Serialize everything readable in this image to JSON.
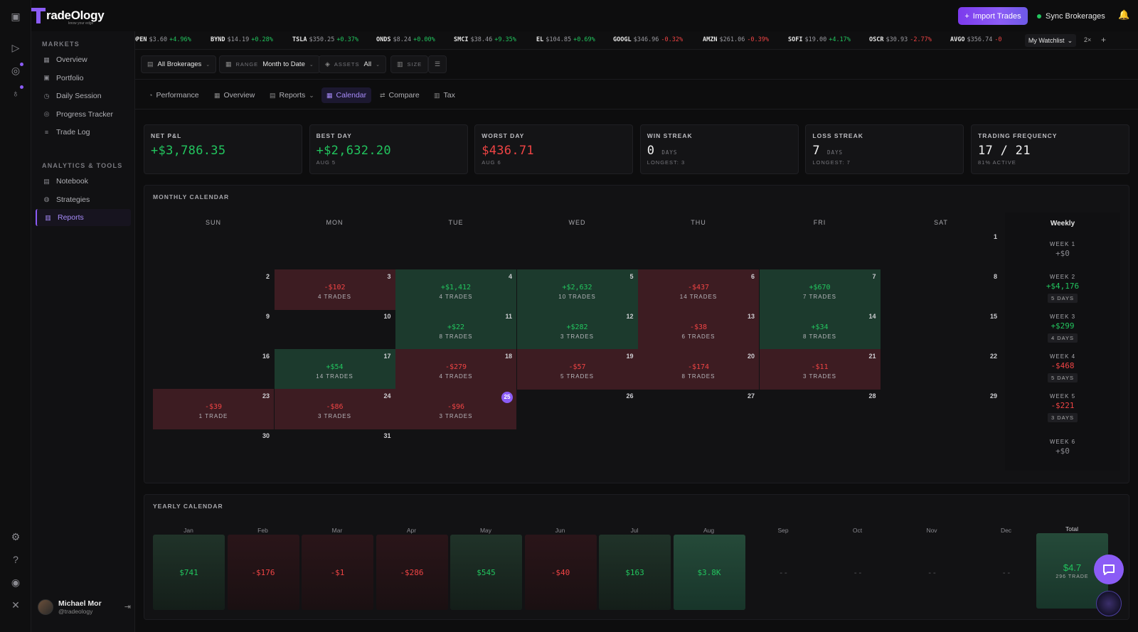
{
  "brand": {
    "name": "radeOlogy",
    "tagline": "know your edge"
  },
  "header": {
    "import_label": "Import Trades",
    "sync_label": "Sync Brokerages"
  },
  "sidebar": {
    "section1": "MARKETS",
    "section2": "ANALYTICS & TOOLS",
    "items1": [
      {
        "label": "Overview",
        "icon": "grid-icon"
      },
      {
        "label": "Portfolio",
        "icon": "wallet-icon"
      },
      {
        "label": "Daily Session",
        "icon": "clock-icon"
      },
      {
        "label": "Progress Tracker",
        "icon": "target-icon"
      },
      {
        "label": "Trade Log",
        "icon": "list-icon"
      }
    ],
    "items2": [
      {
        "label": "Notebook",
        "icon": "book-icon"
      },
      {
        "label": "Strategies",
        "icon": "strategy-icon"
      },
      {
        "label": "Reports",
        "icon": "chart-icon",
        "active": true
      }
    ],
    "user": {
      "name": "Michael Mor",
      "handle": "@tradeology"
    }
  },
  "ticker": [
    {
      "sym": "OPEN",
      "price": "$3.60",
      "chg": "+4.96%",
      "dir": "up"
    },
    {
      "sym": "BYND",
      "price": "$14.19",
      "chg": "+0.28%",
      "dir": "up"
    },
    {
      "sym": "TSLA",
      "price": "$350.25",
      "chg": "+0.37%",
      "dir": "up"
    },
    {
      "sym": "ONDS",
      "price": "$8.24",
      "chg": "+0.00%",
      "dir": "up"
    },
    {
      "sym": "SMCI",
      "price": "$38.46",
      "chg": "+9.35%",
      "dir": "up"
    },
    {
      "sym": "EL",
      "price": "$104.85",
      "chg": "+0.69%",
      "dir": "up"
    },
    {
      "sym": "GOOGL",
      "price": "$346.96",
      "chg": "-0.32%",
      "dir": "dn"
    },
    {
      "sym": "AMZN",
      "price": "$261.06",
      "chg": "-0.39%",
      "dir": "dn"
    },
    {
      "sym": "SOFI",
      "price": "$19.00",
      "chg": "+4.17%",
      "dir": "up"
    },
    {
      "sym": "OSCR",
      "price": "$30.93",
      "chg": "-2.77%",
      "dir": "dn"
    },
    {
      "sym": "AVGO",
      "price": "$356.74",
      "chg": "-0",
      "dir": "dn"
    }
  ],
  "watchlist": {
    "label": "My Watchlist",
    "speed": "2×",
    "add": "+"
  },
  "filters": {
    "brokerage": "All Brokerages",
    "range_label": "RANGE",
    "range": "Month to Date",
    "assets_label": "ASSETS",
    "assets": "All",
    "size_label": "SIZE"
  },
  "tabs": [
    {
      "label": "Performance",
      "icon": "performance-icon"
    },
    {
      "label": "Overview",
      "icon": "overview-icon"
    },
    {
      "label": "Reports",
      "icon": "reports-icon",
      "dropdown": true
    },
    {
      "label": "Calendar",
      "icon": "calendar-icon",
      "active": true
    },
    {
      "label": "Compare",
      "icon": "compare-icon"
    },
    {
      "label": "Tax",
      "icon": "tax-icon"
    }
  ],
  "stats": [
    {
      "title": "NET P&L",
      "value": "+$3,786.35",
      "sub": "",
      "tone": "up"
    },
    {
      "title": "BEST DAY",
      "value": "+$2,632.20",
      "sub": "AUG 5",
      "tone": "up"
    },
    {
      "title": "WORST DAY",
      "value": "$436.71",
      "sub": "AUG 6",
      "tone": "dn"
    },
    {
      "title": "WIN STREAK",
      "value": "0",
      "unit": "DAYS",
      "sub": "LONGEST: 3",
      "tone": "white"
    },
    {
      "title": "LOSS STREAK",
      "value": "7",
      "unit": "DAYS",
      "sub": "LONGEST: 7",
      "tone": "white"
    },
    {
      "title": "TRADING FREQUENCY",
      "value": "17 / 21",
      "sub": "81% ACTIVE",
      "tone": "white"
    }
  ],
  "monthly": {
    "title": "MONTHLY CALENDAR",
    "days": [
      "SUN",
      "MON",
      "TUE",
      "WED",
      "THU",
      "FRI",
      "SAT"
    ],
    "weekly_title": "Weekly",
    "cells": [
      {
        "d": "1",
        "r": 0,
        "c": 6
      },
      {
        "d": "2",
        "r": 1,
        "c": 0
      },
      {
        "d": "3",
        "r": 1,
        "c": 1,
        "pnl": "-$102",
        "trades": "4 TRADES",
        "t": "neg"
      },
      {
        "d": "4",
        "r": 1,
        "c": 2,
        "pnl": "+$1,412",
        "trades": "4 TRADES",
        "t": "pos"
      },
      {
        "d": "5",
        "r": 1,
        "c": 3,
        "pnl": "+$2,632",
        "trades": "10 TRADES",
        "t": "pos"
      },
      {
        "d": "6",
        "r": 1,
        "c": 4,
        "pnl": "-$437",
        "trades": "14 TRADES",
        "t": "neg"
      },
      {
        "d": "7",
        "r": 1,
        "c": 5,
        "pnl": "+$670",
        "trades": "7 TRADES",
        "t": "pos"
      },
      {
        "d": "8",
        "r": 1,
        "c": 6
      },
      {
        "d": "9",
        "r": 2,
        "c": 0
      },
      {
        "d": "10",
        "r": 2,
        "c": 1
      },
      {
        "d": "11",
        "r": 2,
        "c": 2,
        "pnl": "+$22",
        "trades": "8 TRADES",
        "t": "pos"
      },
      {
        "d": "12",
        "r": 2,
        "c": 3,
        "pnl": "+$282",
        "trades": "3 TRADES",
        "t": "pos"
      },
      {
        "d": "13",
        "r": 2,
        "c": 4,
        "pnl": "-$38",
        "trades": "6 TRADES",
        "t": "neg"
      },
      {
        "d": "14",
        "r": 2,
        "c": 5,
        "pnl": "+$34",
        "trades": "8 TRADES",
        "t": "pos"
      },
      {
        "d": "15",
        "r": 2,
        "c": 6
      },
      {
        "d": "16",
        "r": 3,
        "c": 0
      },
      {
        "d": "17",
        "r": 3,
        "c": 1,
        "pnl": "+$54",
        "trades": "14 TRADES",
        "t": "pos"
      },
      {
        "d": "18",
        "r": 3,
        "c": 2,
        "pnl": "-$279",
        "trades": "4 TRADES",
        "t": "neg"
      },
      {
        "d": "19",
        "r": 3,
        "c": 3,
        "pnl": "-$57",
        "trades": "5 TRADES",
        "t": "neg"
      },
      {
        "d": "20",
        "r": 3,
        "c": 4,
        "pnl": "-$174",
        "trades": "8 TRADES",
        "t": "neg"
      },
      {
        "d": "21",
        "r": 3,
        "c": 5,
        "pnl": "-$11",
        "trades": "3 TRADES",
        "t": "neg"
      },
      {
        "d": "22",
        "r": 3,
        "c": 6
      },
      {
        "d": "23",
        "r": 4,
        "c": 0,
        "pnl": "-$39",
        "trades": "1 TRADE",
        "t": "neg"
      },
      {
        "d": "24",
        "r": 4,
        "c": 1,
        "pnl": "-$86",
        "trades": "3 TRADES",
        "t": "neg"
      },
      {
        "d": "25",
        "r": 4,
        "c": 2,
        "pnl": "-$96",
        "trades": "3 TRADES",
        "t": "neg",
        "today": true
      },
      {
        "d": "26",
        "r": 4,
        "c": 3
      },
      {
        "d": "27",
        "r": 4,
        "c": 4
      },
      {
        "d": "28",
        "r": 4,
        "c": 5
      },
      {
        "d": "29",
        "r": 4,
        "c": 6
      },
      {
        "d": "30",
        "r": 5,
        "c": 0
      },
      {
        "d": "31",
        "r": 5,
        "c": 1
      }
    ],
    "weeks": [
      {
        "label": "WEEK 1",
        "value": "+$0",
        "tone": "grey"
      },
      {
        "label": "WEEK 2",
        "value": "+$4,176",
        "days": "5 DAYS",
        "tone": "up"
      },
      {
        "label": "WEEK 3",
        "value": "+$299",
        "days": "4 DAYS",
        "tone": "up"
      },
      {
        "label": "WEEK 4",
        "value": "-$468",
        "days": "5 DAYS",
        "tone": "dn"
      },
      {
        "label": "WEEK 5",
        "value": "-$221",
        "days": "3 DAYS",
        "tone": "dn"
      },
      {
        "label": "WEEK 6",
        "value": "+$0",
        "tone": "grey"
      }
    ]
  },
  "yearly": {
    "title": "YEARLY CALENDAR",
    "months": [
      {
        "m": "Jan",
        "v": "$741",
        "t": "pos"
      },
      {
        "m": "Feb",
        "v": "-$176",
        "t": "neg"
      },
      {
        "m": "Mar",
        "v": "-$1",
        "t": "neg"
      },
      {
        "m": "Apr",
        "v": "-$286",
        "t": "neg"
      },
      {
        "m": "May",
        "v": "$545",
        "t": "pos"
      },
      {
        "m": "Jun",
        "v": "-$40",
        "t": "neg"
      },
      {
        "m": "Jul",
        "v": "$163",
        "t": "pos"
      },
      {
        "m": "Aug",
        "v": "$3.8K",
        "t": "big"
      },
      {
        "m": "Sep",
        "v": "--",
        "t": "none"
      },
      {
        "m": "Oct",
        "v": "--",
        "t": "none"
      },
      {
        "m": "Nov",
        "v": "--",
        "t": "none"
      },
      {
        "m": "Dec",
        "v": "--",
        "t": "none"
      }
    ],
    "total_label": "Total",
    "total_value": "$4.7",
    "total_trades": "296 TRADE"
  },
  "colors": {
    "accent": "#8b5cf6",
    "up": "#22c55e",
    "down": "#ef4444"
  }
}
